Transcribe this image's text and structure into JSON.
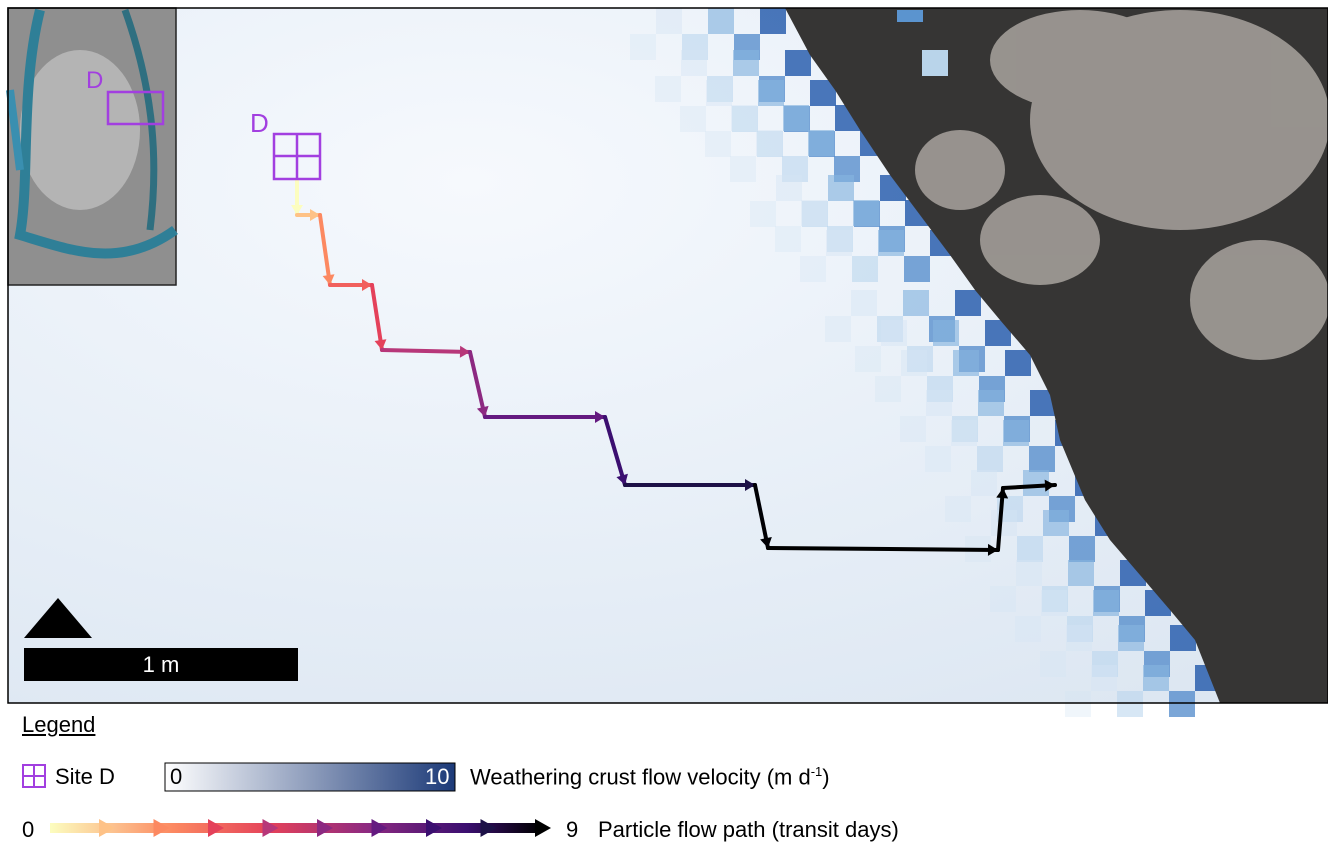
{
  "map": {
    "site_label": "D",
    "inset_label": "D",
    "scale_bar": "1 m"
  },
  "legend": {
    "title": "Legend",
    "site": "Site D",
    "velocity": {
      "min": 0,
      "max": 10,
      "label": "Weathering crust flow velocity (m d",
      "superscript": "-1",
      "label_end": ")"
    },
    "path": {
      "min": 0,
      "max": 9,
      "label": "Particle flow path (transit days)"
    }
  }
}
